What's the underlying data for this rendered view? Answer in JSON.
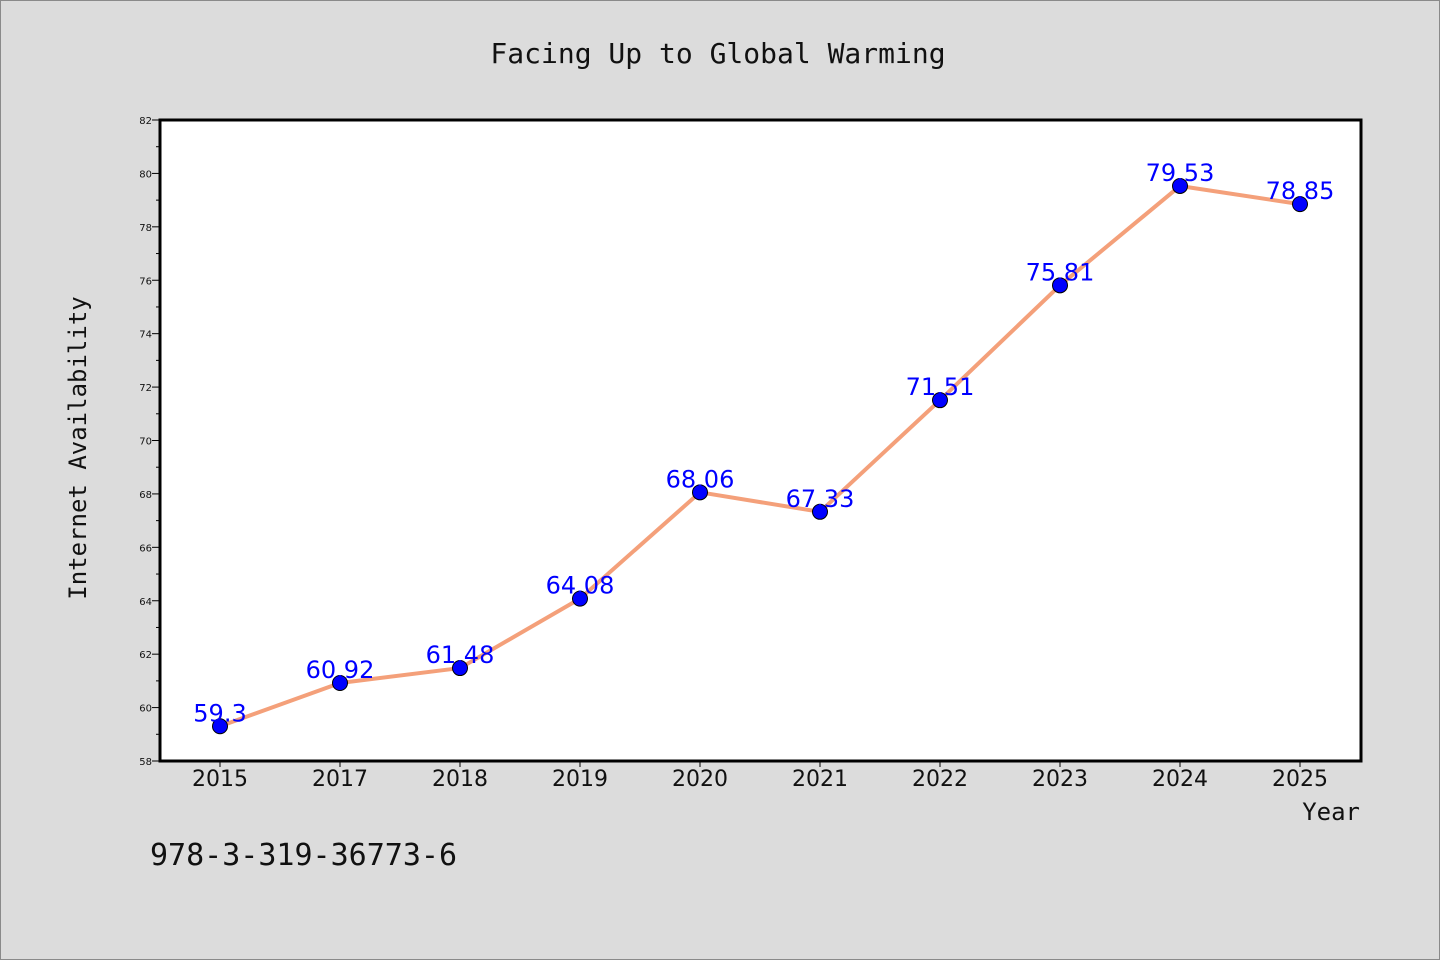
{
  "chart_data": {
    "type": "line",
    "title": "Facing Up to Global Warming",
    "xlabel": "Year",
    "ylabel": "Internet Availability",
    "categories": [
      "2015",
      "2017",
      "2018",
      "2019",
      "2020",
      "2021",
      "2022",
      "2023",
      "2024",
      "2025"
    ],
    "series": [
      {
        "values": [
          59.3,
          60.92,
          61.48,
          64.08,
          68.06,
          67.33,
          71.51,
          75.81,
          79.53,
          78.85
        ],
        "data_labels": [
          "59.3",
          "60.92",
          "61.48",
          "64.08",
          "68.06",
          "67.33",
          "71.51",
          "75.81",
          "79.53",
          "78.85"
        ],
        "line_color": "#f4a07a",
        "marker_color": "#0000ff"
      }
    ],
    "ylim": [
      58,
      82
    ],
    "yticks": [
      "58",
      "60",
      "62",
      "64",
      "66",
      "68",
      "70",
      "72",
      "74",
      "76",
      "78",
      "80",
      "82"
    ],
    "grid": false,
    "legend": "none"
  },
  "footer": {
    "isbn": "978-3-319-36773-6"
  },
  "colors": {
    "background": "#dcdcdc",
    "plot_background": "#ffffff",
    "line": "#f4a07a",
    "marker": "#0000ff",
    "data_label": "#0000ff"
  }
}
